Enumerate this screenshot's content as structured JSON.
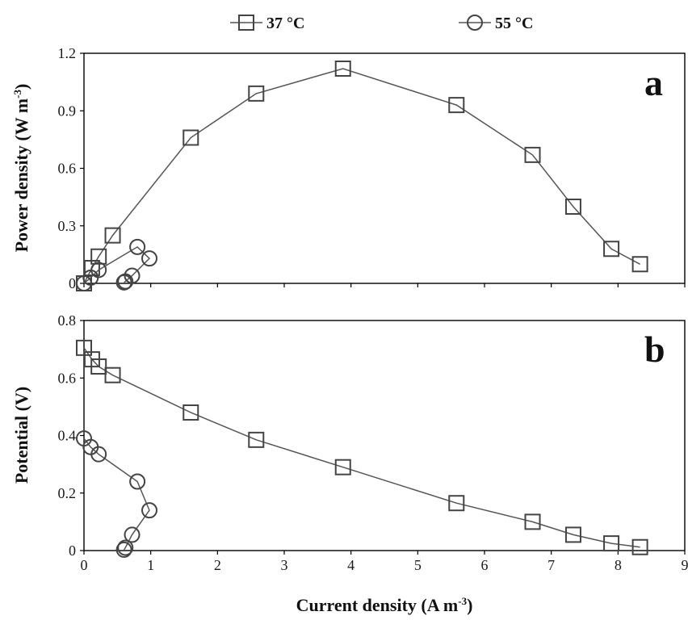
{
  "chart_data": [
    {
      "panel": "a",
      "type": "line",
      "ylabel": "Power density (W m",
      "ylabel_sup": "-3",
      "ylabel_end": ")",
      "ylim": [
        0,
        1.2
      ],
      "yticks": [
        "0",
        "0.3",
        "0.6",
        "0.9",
        "1.2"
      ],
      "xlim": [
        0,
        9
      ],
      "grid": false,
      "series": [
        {
          "name": "37 °C",
          "marker": "square",
          "x": [
            0.0,
            0.12,
            0.22,
            0.43,
            1.6,
            2.58,
            3.88,
            5.58,
            6.72,
            7.33,
            7.9,
            8.33
          ],
          "y": [
            0.0,
            0.08,
            0.14,
            0.25,
            0.76,
            0.99,
            1.12,
            0.93,
            0.67,
            0.4,
            0.18,
            0.1
          ]
        },
        {
          "name": "55 °C",
          "marker": "circle",
          "x": [
            0.0,
            0.1,
            0.22,
            0.8,
            0.98,
            0.72,
            0.62,
            0.6
          ],
          "y": [
            0.0,
            0.03,
            0.07,
            0.19,
            0.13,
            0.04,
            0.01,
            0.005
          ]
        }
      ]
    },
    {
      "panel": "b",
      "type": "line",
      "ylabel": "Potential (V)",
      "ylim": [
        0,
        0.8
      ],
      "yticks": [
        "0",
        "0.2",
        "0.4",
        "0.6",
        "0.8"
      ],
      "xlim": [
        0,
        9
      ],
      "xticks": [
        "0",
        "1",
        "2",
        "3",
        "4",
        "5",
        "6",
        "7",
        "8",
        "9"
      ],
      "xlabel": "Current density (A m",
      "xlabel_sup": "-3",
      "xlabel_end": ")",
      "grid": false,
      "series": [
        {
          "name": "37 °C",
          "marker": "square",
          "x": [
            0.0,
            0.12,
            0.22,
            0.43,
            1.6,
            2.58,
            3.88,
            5.58,
            6.72,
            7.33,
            7.9,
            8.33
          ],
          "y": [
            0.705,
            0.665,
            0.64,
            0.61,
            0.48,
            0.385,
            0.29,
            0.165,
            0.1,
            0.055,
            0.025,
            0.012
          ]
        },
        {
          "name": "55 °C",
          "marker": "circle",
          "x": [
            0.0,
            0.1,
            0.22,
            0.8,
            0.98,
            0.72,
            0.62,
            0.6
          ],
          "y": [
            0.39,
            0.36,
            0.335,
            0.24,
            0.14,
            0.055,
            0.01,
            0.003
          ]
        }
      ]
    }
  ],
  "legend": {
    "items": [
      {
        "label": "37 °C",
        "marker": "square"
      },
      {
        "label": "55 °C",
        "marker": "circle"
      }
    ]
  },
  "panel_letters": {
    "a": "a",
    "b": "b"
  }
}
